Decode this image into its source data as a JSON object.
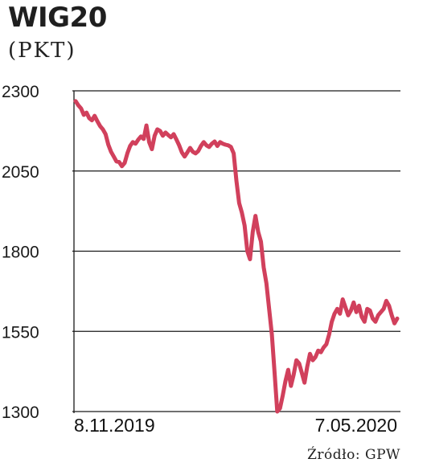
{
  "title": "WIG20",
  "subtitle": "(PKT)",
  "source": "Źródło: GPW",
  "colors": {
    "line": "#d1405c",
    "grid": "#1a1a1a"
  },
  "chart_data": {
    "type": "line",
    "title": "WIG20",
    "ylabel": "(PKT)",
    "ylim": [
      1300,
      2300
    ],
    "yticks": [
      2300,
      2050,
      1800,
      1550,
      1300
    ],
    "xtick_labels": [
      "8.11.2019",
      "7.05.2020"
    ],
    "x_range": [
      "2019-11-08",
      "2020-05-07"
    ],
    "grid": true,
    "series": [
      {
        "values": [
          2268,
          2255,
          2245,
          2225,
          2232,
          2215,
          2208,
          2222,
          2205,
          2190,
          2180,
          2165,
          2132,
          2110,
          2095,
          2080,
          2078,
          2065,
          2075,
          2105,
          2128,
          2140,
          2135,
          2148,
          2158,
          2150,
          2192,
          2140,
          2118,
          2160,
          2180,
          2175,
          2160,
          2170,
          2162,
          2155,
          2165,
          2148,
          2130,
          2108,
          2095,
          2108,
          2122,
          2110,
          2105,
          2112,
          2128,
          2140,
          2130,
          2125,
          2135,
          2142,
          2128,
          2140,
          2135,
          2132,
          2130,
          2125,
          2105,
          2020,
          1950,
          1920,
          1880,
          1800,
          1775,
          1860,
          1910,
          1860,
          1830,
          1750,
          1700,
          1620,
          1540,
          1420,
          1300,
          1310,
          1350,
          1395,
          1430,
          1380,
          1415,
          1460,
          1450,
          1420,
          1390,
          1440,
          1480,
          1460,
          1470,
          1490,
          1485,
          1500,
          1510,
          1540,
          1580,
          1605,
          1620,
          1605,
          1650,
          1625,
          1600,
          1615,
          1640,
          1610,
          1630,
          1595,
          1580,
          1620,
          1615,
          1590,
          1580,
          1600,
          1610,
          1620,
          1645,
          1630,
          1600,
          1575,
          1590
        ]
      }
    ]
  }
}
